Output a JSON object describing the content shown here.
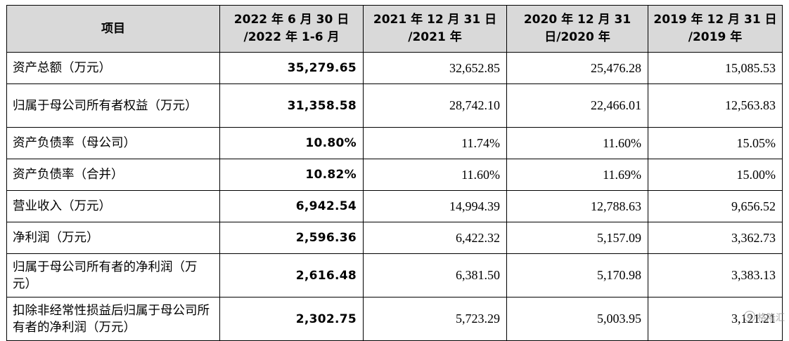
{
  "table": {
    "headers": [
      "项目",
      "2022 年 6 月 30 日 /2022 年 1-6 月",
      "2021 年 12 月 31 日 /2021 年",
      "2020 年 12 月 31 日/2020 年",
      "2019 年 12 月 31 日 /2019 年"
    ],
    "rows": [
      {
        "label": "资产总额（万元）",
        "values": [
          "35,279.65",
          "32,652.85",
          "25,476.28",
          "15,085.53"
        ]
      },
      {
        "label": "归属于母公司所有者权益（万元）",
        "values": [
          "31,358.58",
          "28,742.10",
          "22,466.01",
          "12,563.83"
        ]
      },
      {
        "label": "资产负债率（母公司）",
        "values": [
          "10.80%",
          "11.74%",
          "11.60%",
          "15.05%"
        ]
      },
      {
        "label": "资产负债率（合并）",
        "values": [
          "10.82%",
          "11.60%",
          "11.69%",
          "15.00%"
        ]
      },
      {
        "label": "营业收入（万元）",
        "values": [
          "6,942.54",
          "14,994.39",
          "12,788.63",
          "9,656.52"
        ]
      },
      {
        "label": "净利润（万元）",
        "values": [
          "2,596.36",
          "6,422.32",
          "5,157.09",
          "3,362.73"
        ]
      },
      {
        "label": "归属于母公司所有者的净利润（万元）",
        "values": [
          "2,616.48",
          "6,381.50",
          "5,170.98",
          "3,383.13"
        ]
      },
      {
        "label": "扣除非经常性损益后归属于母公司所有者的净利润（万元）",
        "values": [
          "2,302.75",
          "5,723.29",
          "5,003.95",
          "3,121.21"
        ]
      }
    ]
  },
  "watermark": {
    "icon_text": "G",
    "text": "格隆汇"
  }
}
